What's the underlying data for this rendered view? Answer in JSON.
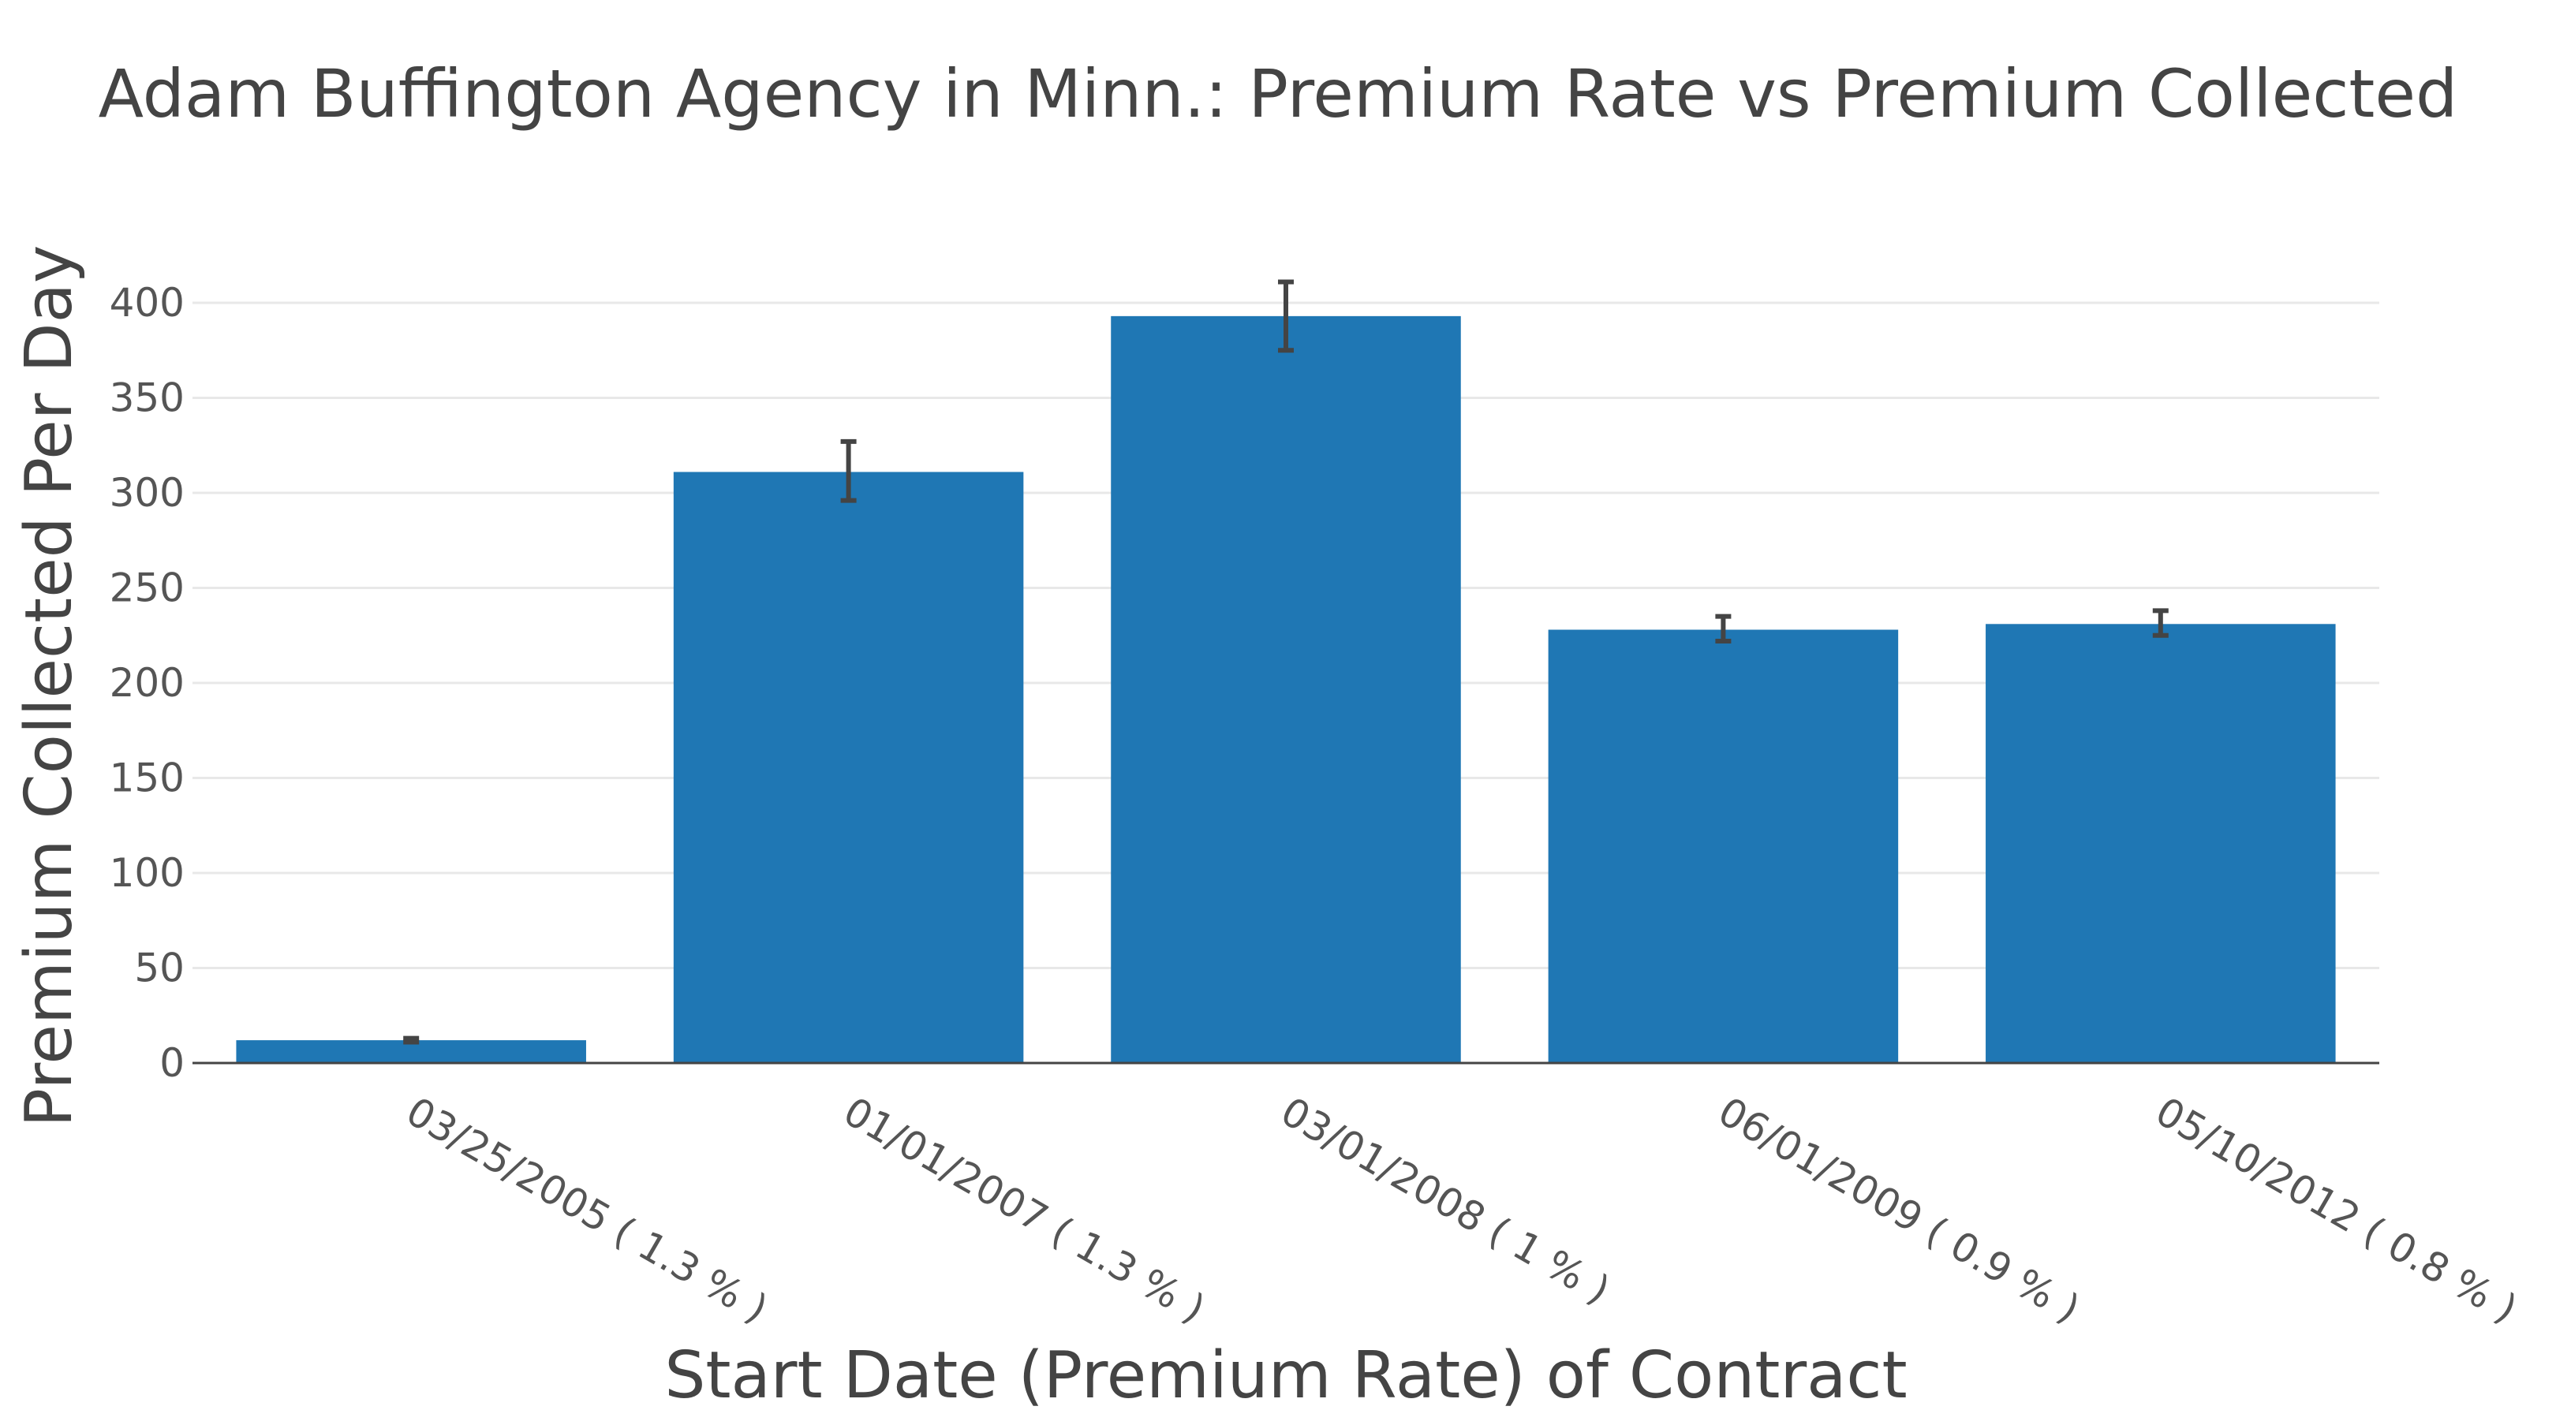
{
  "chart_data": {
    "type": "bar",
    "title": "Adam Buffington Agency in Minn.: Premium Rate vs Premium Collected",
    "xlabel": "Start Date (Premium Rate) of Contract",
    "ylabel": "Premium Collected Per Day",
    "categories": [
      "03/25/2005 ( 1.3 % )",
      "01/01/2007 ( 1.3 % )",
      "03/01/2008 ( 1 % )",
      "06/01/2009 ( 0.9 % )",
      "05/10/2012 ( 0.8 % )"
    ],
    "values": [
      12,
      311,
      393,
      228,
      231
    ],
    "error_low": [
      1,
      15,
      18,
      6,
      6
    ],
    "error_high": [
      1,
      16,
      18,
      7,
      7
    ],
    "yticks": [
      0,
      50,
      100,
      150,
      200,
      250,
      300,
      350,
      400
    ],
    "ylim": [
      0,
      420
    ],
    "grid": true,
    "colors": {
      "bar": "#1f77b4",
      "error_bar": "#444444",
      "grid": "#e8e8e8"
    }
  }
}
